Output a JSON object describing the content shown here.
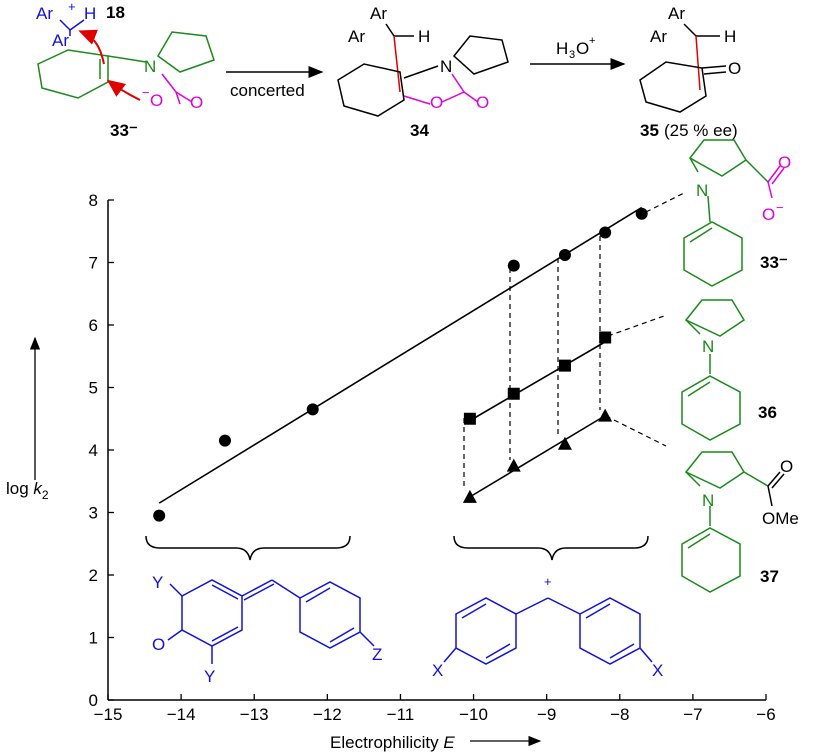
{
  "scheme": {
    "reactant_carbocation_label": "18",
    "enamine_label": "33⁻",
    "arrow_label": "concerted",
    "intermediate_label": "34",
    "reagent_main": "H",
    "reagent_sub": "3",
    "reagent_tail": "O",
    "reagent_sup": "+",
    "product_label": "35",
    "product_ee": "(25 % ee)",
    "ar": "Ar",
    "h": "H",
    "n": "N",
    "o": "O",
    "o_minus": "O",
    "plus": "+",
    "minus": "−"
  },
  "legend": {
    "e33_label": "33⁻",
    "e36_label": "36",
    "e37_label": "37",
    "ome": "OMe",
    "o": "O",
    "n": "N"
  },
  "substituents": {
    "y_top": "Y",
    "y_bottom": "Y",
    "o": "O",
    "z": "Z",
    "x_left": "X",
    "x_right": "X",
    "plus": "+"
  },
  "chart_data": {
    "type": "scatter",
    "xlabel": "Electrophilicity E",
    "ylabel": "log k2",
    "xlim": [
      -15,
      -6
    ],
    "ylim": [
      0,
      8
    ],
    "xticks": [
      "−15",
      "−14",
      "−13",
      "−12",
      "−11",
      "−10",
      "−9",
      "−8",
      "−7",
      "−6"
    ],
    "yticks": [
      "0",
      "1",
      "2",
      "3",
      "4",
      "5",
      "6",
      "7",
      "8"
    ],
    "series": [
      {
        "name": "33⁻",
        "marker": "circle",
        "x": [
          -14.3,
          -13.4,
          -12.2,
          -9.45,
          -8.75,
          -8.2,
          -7.7
        ],
        "y": [
          2.95,
          4.15,
          4.65,
          6.95,
          7.12,
          7.48,
          7.78
        ],
        "fit": [
          [
            -14.3,
            3.15
          ],
          [
            -7.7,
            7.88
          ]
        ]
      },
      {
        "name": "36",
        "marker": "square",
        "x": [
          -10.05,
          -9.45,
          -8.75,
          -8.2
        ],
        "y": [
          4.5,
          4.9,
          5.35,
          5.8
        ],
        "fit": [
          [
            -10.05,
            4.47
          ],
          [
            -8.2,
            5.73
          ]
        ]
      },
      {
        "name": "37",
        "marker": "triangle",
        "x": [
          -10.05,
          -9.45,
          -8.75,
          -8.2
        ],
        "y": [
          3.25,
          3.75,
          4.1,
          4.55
        ],
        "fit": [
          [
            -10.05,
            3.25
          ],
          [
            -8.2,
            4.55
          ]
        ]
      }
    ]
  }
}
